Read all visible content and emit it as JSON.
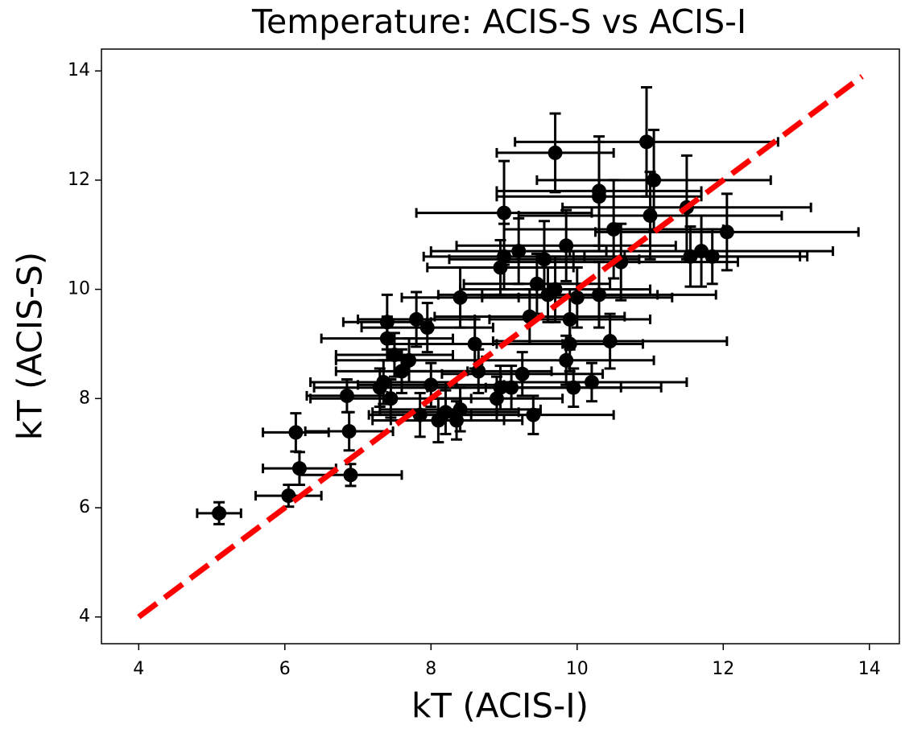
{
  "chart_data": {
    "type": "scatter",
    "title": "Temperature: ACIS-S vs ACIS-I",
    "xlabel": "kT (ACIS-I)",
    "ylabel": "kT (ACIS-S)",
    "xlim": [
      3.49,
      14.41
    ],
    "ylim": [
      3.51,
      14.4
    ],
    "xticks": [
      4,
      6,
      8,
      10,
      12,
      14
    ],
    "yticks": [
      4,
      6,
      8,
      10,
      12,
      14
    ],
    "series": [
      {
        "color": "#000000",
        "x": [
          5.1,
          6.05,
          6.2,
          6.15,
          6.9,
          6.88,
          6.85,
          7.3,
          7.4,
          7.4,
          7.5,
          7.6,
          7.7,
          7.45,
          7.8,
          7.95,
          7.85,
          8.1,
          8.2,
          8.35,
          8.4,
          8.4,
          8.6,
          8.65,
          8.9,
          8.95,
          9.0,
          9.0,
          8.95,
          9.1,
          9.2,
          9.25,
          9.35,
          9.4,
          9.45,
          9.55,
          9.6,
          9.7,
          9.7,
          9.85,
          9.85,
          9.9,
          9.9,
          9.95,
          10.0,
          10.2,
          10.3,
          10.3,
          10.45,
          10.5,
          10.6,
          10.95,
          11.0,
          11.05,
          11.5,
          11.55,
          11.7,
          11.85,
          12.05,
          8.0,
          7.35,
          10.3
        ],
        "y": [
          5.9,
          6.22,
          6.72,
          7.38,
          6.6,
          7.4,
          8.05,
          8.2,
          9.4,
          9.1,
          8.8,
          8.5,
          8.7,
          8.0,
          9.45,
          9.3,
          7.7,
          7.6,
          7.75,
          7.6,
          7.8,
          9.85,
          9.0,
          8.5,
          8.0,
          8.2,
          10.6,
          11.4,
          10.4,
          8.2,
          10.7,
          8.45,
          9.5,
          7.7,
          10.1,
          10.55,
          9.9,
          12.5,
          10.0,
          10.8,
          8.7,
          9.0,
          9.45,
          8.2,
          9.85,
          8.3,
          9.9,
          11.8,
          9.05,
          11.1,
          10.5,
          12.7,
          11.35,
          12.0,
          11.5,
          10.6,
          10.7,
          10.6,
          11.05,
          8.25,
          8.3,
          11.7
        ],
        "xerr": [
          0.3,
          0.45,
          0.5,
          0.45,
          0.7,
          0.6,
          0.55,
          0.9,
          0.6,
          0.9,
          0.8,
          0.9,
          1.0,
          1.1,
          0.8,
          0.9,
          0.7,
          0.9,
          1.0,
          0.9,
          1.1,
          0.8,
          1.2,
          1.0,
          0.9,
          1.0,
          1.1,
          1.2,
          1.0,
          1.5,
          1.2,
          1.1,
          1.3,
          1.1,
          1.0,
          1.3,
          1.5,
          0.8,
          1.3,
          1.5,
          1.2,
          1.0,
          1.1,
          1.2,
          1.3,
          1.3,
          1.6,
          1.4,
          1.6,
          1.5,
          1.6,
          1.8,
          1.8,
          1.6,
          1.7,
          1.6,
          1.8,
          1.2,
          1.8,
          1.0,
          1.0,
          1.4
        ],
        "yerr": [
          0.2,
          0.2,
          0.3,
          0.35,
          0.2,
          0.35,
          0.3,
          0.35,
          0.5,
          0.4,
          0.4,
          0.4,
          0.4,
          0.35,
          0.5,
          0.45,
          0.4,
          0.4,
          0.4,
          0.35,
          0.4,
          0.55,
          0.45,
          0.4,
          0.4,
          0.4,
          0.6,
          0.95,
          0.5,
          0.4,
          0.6,
          0.4,
          0.5,
          0.35,
          0.55,
          0.7,
          0.5,
          0.72,
          0.6,
          0.65,
          0.45,
          0.5,
          0.55,
          0.35,
          0.55,
          0.35,
          0.6,
          1.0,
          0.5,
          0.9,
          0.7,
          1.0,
          0.8,
          0.92,
          0.95,
          0.55,
          0.65,
          0.5,
          0.7,
          0.4,
          0.4,
          1.0
        ]
      }
    ],
    "lines": [
      {
        "color": "#ff0000",
        "style": "dashed",
        "x": [
          4,
          13.9
        ],
        "y": [
          4,
          13.9
        ]
      }
    ]
  }
}
